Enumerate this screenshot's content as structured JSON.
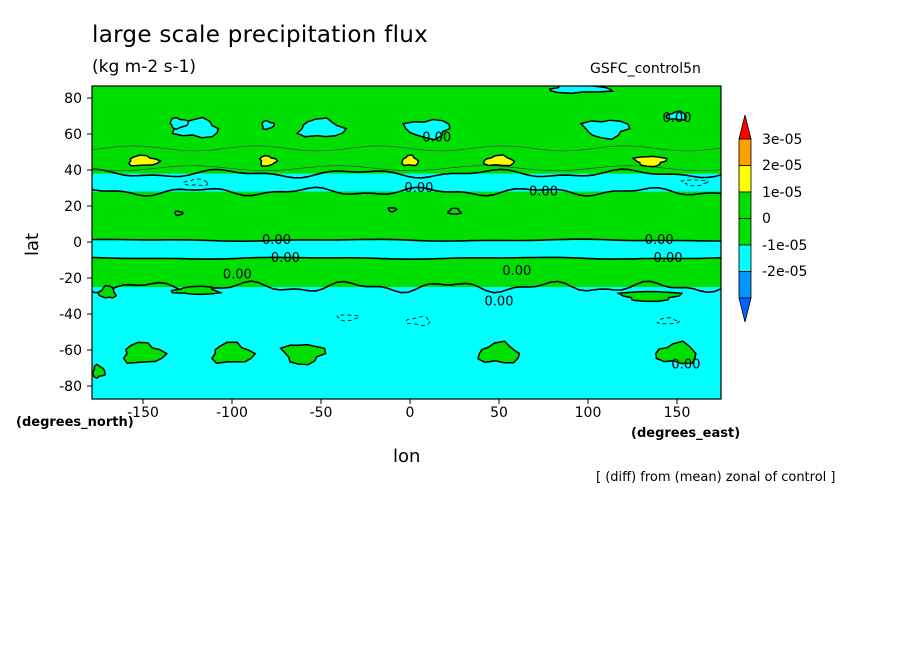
{
  "chart_data": {
    "type": "heatmap",
    "title": "large scale precipitation flux",
    "subtitle": "(kg m-2 s-1)",
    "run_label": "GSFC_control5n",
    "xlabel": "lon",
    "ylabel": "lat",
    "x_unit": "(degrees_east)",
    "y_unit": "(degrees_north)",
    "note": "[ (diff) from (mean) zonal of control ]",
    "xlim": [
      -180,
      180
    ],
    "ylim": [
      -90,
      90
    ],
    "x_ticks": [
      -150,
      -100,
      -50,
      0,
      50,
      100,
      150
    ],
    "x_tick_labels": [
      "-150",
      "-100",
      "-50",
      "0",
      "50",
      "100",
      "150"
    ],
    "y_ticks": [
      80,
      60,
      40,
      20,
      0,
      -20,
      -40,
      -60,
      -80
    ],
    "y_tick_labels": [
      "80",
      "60",
      "40",
      "20",
      "0",
      "-20",
      "-40",
      "-60",
      "-80"
    ],
    "colorbar": {
      "labels": [
        "3e-05",
        "2e-05",
        "1e-05",
        "0",
        "-1e-05",
        "-2e-05"
      ],
      "colors": [
        "#ff0000",
        "#ff9f00",
        "#ffff00",
        "#00e000",
        "#00ffff",
        "#0096ff"
      ],
      "top_arrow_color": "#ff0000",
      "bottom_arrow_color": "#0064ff"
    },
    "contour_labels": [
      "0.00",
      "0.00",
      "0.00",
      "0.00",
      "0.00",
      "0.00",
      "0.00",
      "0.00",
      "0.00",
      "0.00",
      "0.00",
      "0.00"
    ],
    "bands": [
      {
        "lat_from": 90,
        "lat_to": 68,
        "color": "#00e000"
      },
      {
        "lat_from": 68,
        "lat_to": 52,
        "color": "#00e000"
      },
      {
        "lat_from": 52,
        "lat_to": 38,
        "color": "#00e000"
      },
      {
        "lat_from": 38,
        "lat_to": 28,
        "color": "#00ffff"
      },
      {
        "lat_from": 28,
        "lat_to": 1,
        "color": "#00e000"
      },
      {
        "lat_from": 1,
        "lat_to": -9,
        "color": "#00ffff"
      },
      {
        "lat_from": -9,
        "lat_to": -25,
        "color": "#00e000"
      },
      {
        "lat_from": -25,
        "lat_to": -90,
        "color": "#00ffff"
      }
    ],
    "features": [
      {
        "type": "positive_maxima",
        "lat": 45,
        "lon": [
          -150,
          -80,
          0,
          50,
          135
        ],
        "color": "#ffff00"
      },
      {
        "type": "negative_patches",
        "lat": 63,
        "lon": [
          -120,
          -50,
          10,
          110
        ],
        "color": "#00ffff"
      },
      {
        "type": "positive_patches",
        "lat": -62,
        "lon": [
          -150,
          -100,
          -60,
          50,
          150
        ],
        "color": "#00e000"
      }
    ]
  }
}
